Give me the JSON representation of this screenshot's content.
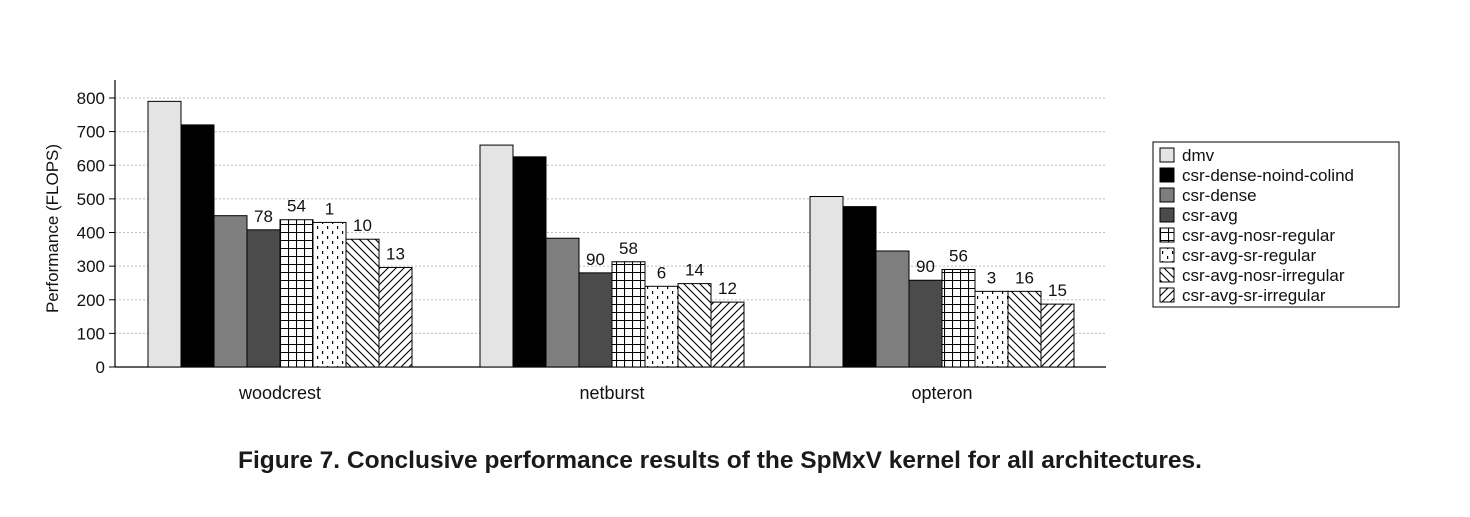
{
  "caption": "Figure 7. Conclusive performance results of the SpMxV kernel for all architectures.",
  "chart_data": {
    "type": "bar",
    "ylabel": "Performance (FLOPS)",
    "xlabel": "",
    "ylim": [
      0,
      800
    ],
    "yticks": [
      0,
      100,
      200,
      300,
      400,
      500,
      600,
      700,
      800
    ],
    "grid": "horizontal dotted",
    "legend_position": "right",
    "categories": [
      "woodcrest",
      "netburst",
      "opteron"
    ],
    "series": [
      {
        "name": "dmv",
        "style": "light-gray",
        "values": [
          790,
          660,
          507
        ],
        "labels": [
          "",
          "",
          ""
        ]
      },
      {
        "name": "csr-dense-noind-colind",
        "style": "black",
        "values": [
          720,
          625,
          477
        ],
        "labels": [
          "",
          "",
          ""
        ]
      },
      {
        "name": "csr-dense",
        "style": "mid-gray",
        "values": [
          450,
          383,
          345
        ],
        "labels": [
          "",
          "",
          ""
        ]
      },
      {
        "name": "csr-avg",
        "style": "dark-gray",
        "values": [
          408,
          280,
          258
        ],
        "labels": [
          "78",
          "90",
          "90"
        ]
      },
      {
        "name": "csr-avg-nosr-regular",
        "style": "grid",
        "values": [
          438,
          313,
          290
        ],
        "labels": [
          "54",
          "58",
          "56"
        ]
      },
      {
        "name": "csr-avg-sr-regular",
        "style": "dots",
        "values": [
          430,
          240,
          225
        ],
        "labels": [
          "1",
          "6",
          "3"
        ]
      },
      {
        "name": "csr-avg-nosr-irregular",
        "style": "back-diagonal",
        "values": [
          380,
          248,
          225
        ],
        "labels": [
          "10",
          "14",
          "16"
        ]
      },
      {
        "name": "csr-avg-sr-irregular",
        "style": "forward-diagonal",
        "values": [
          296,
          193,
          187
        ],
        "labels": [
          "13",
          "12",
          "15"
        ]
      }
    ],
    "colors": {
      "light_gray": "#e4e4e4",
      "black": "#000000",
      "mid_gray": "#7e7e7e",
      "dark_gray": "#4b4b4b",
      "grid": "#bdbdbd"
    }
  }
}
